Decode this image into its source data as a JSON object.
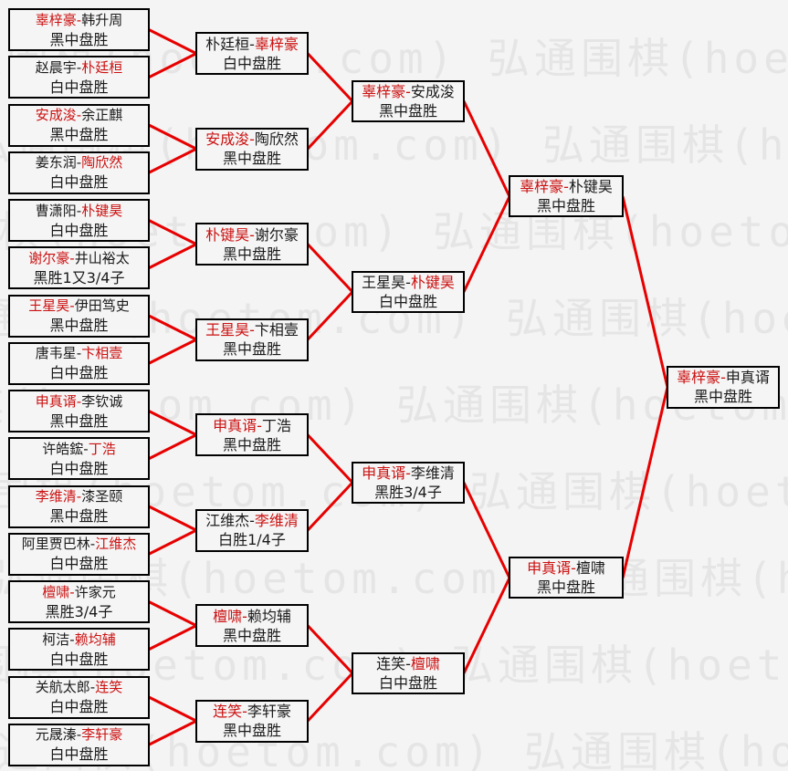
{
  "styles": {
    "background": "#f4f4f4",
    "box_background": "#f5f5f5",
    "box_border": "#000000",
    "text_color": "#1a1a1a",
    "winner_color": "#cc1111",
    "line_color": "#e70000",
    "watermark_color": "#e5e5e5"
  },
  "watermark": {
    "text": "弘通围棋(hoetom.com)"
  },
  "bracket": {
    "separator": "-",
    "rounds": [
      {
        "matches": [
          {
            "left": "辜梓豪",
            "right": "韩升周",
            "winner": "left",
            "result": "黑中盘胜"
          },
          {
            "left": "赵晨宇",
            "right": "朴廷桓",
            "winner": "right",
            "result": "白中盘胜"
          },
          {
            "left": "安成浚",
            "right": "余正麒",
            "winner": "left",
            "result": "黑中盘胜"
          },
          {
            "left": "姜东润",
            "right": "陶欣然",
            "winner": "right",
            "result": "白中盘胜"
          },
          {
            "left": "曹潇阳",
            "right": "朴键昊",
            "winner": "right",
            "result": "白中盘胜"
          },
          {
            "left": "谢尔豪",
            "right": "井山裕太",
            "winner": "left",
            "result": "黑胜1又3/4子"
          },
          {
            "left": "王星昊",
            "right": "伊田笃史",
            "winner": "left",
            "result": "黑中盘胜"
          },
          {
            "left": "唐韦星",
            "right": "卞相壹",
            "winner": "right",
            "result": "白中盘胜"
          },
          {
            "left": "申真谞",
            "right": "李钦诚",
            "winner": "left",
            "result": "黑中盘胜"
          },
          {
            "left": "许皓鋐",
            "right": "丁浩",
            "winner": "right",
            "result": "白中盘胜"
          },
          {
            "left": "李维清",
            "right": "漆圣颐",
            "winner": "left",
            "result": "黑中盘胜"
          },
          {
            "left": "阿里贾巴林",
            "right": "江维杰",
            "winner": "right",
            "result": "白中盘胜"
          },
          {
            "left": "檀啸",
            "right": "许家元",
            "winner": "left",
            "result": "黑胜3/4子"
          },
          {
            "left": "柯洁",
            "right": "赖均辅",
            "winner": "right",
            "result": "白中盘胜"
          },
          {
            "left": "关航太郎",
            "right": "连笑",
            "winner": "right",
            "result": "白中盘胜"
          },
          {
            "left": "元晟溱",
            "right": "李轩豪",
            "winner": "right",
            "result": "白中盘胜"
          }
        ]
      },
      {
        "matches": [
          {
            "left": "朴廷桓",
            "right": "辜梓豪",
            "winner": "right",
            "result": "白中盘胜"
          },
          {
            "left": "安成浚",
            "right": "陶欣然",
            "winner": "left",
            "result": "黑中盘胜"
          },
          {
            "left": "朴键昊",
            "right": "谢尔豪",
            "winner": "left",
            "result": "黑中盘胜"
          },
          {
            "left": "王星昊",
            "right": "卞相壹",
            "winner": "left",
            "result": "黑中盘胜"
          },
          {
            "left": "申真谞",
            "right": "丁浩",
            "winner": "left",
            "result": "黑中盘胜"
          },
          {
            "left": "江维杰",
            "right": "李维清",
            "winner": "right",
            "result": "白胜1/4子"
          },
          {
            "left": "檀啸",
            "right": "赖均辅",
            "winner": "left",
            "result": "黑中盘胜"
          },
          {
            "left": "连笑",
            "right": "李轩豪",
            "winner": "left",
            "result": "黑中盘胜"
          }
        ]
      },
      {
        "matches": [
          {
            "left": "辜梓豪",
            "right": "安成浚",
            "winner": "left",
            "result": "黑中盘胜"
          },
          {
            "left": "王星昊",
            "right": "朴键昊",
            "winner": "right",
            "result": "白中盘胜"
          },
          {
            "left": "申真谞",
            "right": "李维清",
            "winner": "left",
            "result": "黑胜3/4子"
          },
          {
            "left": "连笑",
            "right": "檀啸",
            "winner": "right",
            "result": "白中盘胜"
          }
        ]
      },
      {
        "matches": [
          {
            "left": "辜梓豪",
            "right": "朴键昊",
            "winner": "left",
            "result": "黑中盘胜"
          },
          {
            "left": "申真谞",
            "right": "檀啸",
            "winner": "left",
            "result": "黑中盘胜"
          }
        ]
      },
      {
        "matches": [
          {
            "left": "辜梓豪",
            "right": "申真谞",
            "winner": "left",
            "result": "黑中盘胜"
          }
        ]
      }
    ]
  }
}
